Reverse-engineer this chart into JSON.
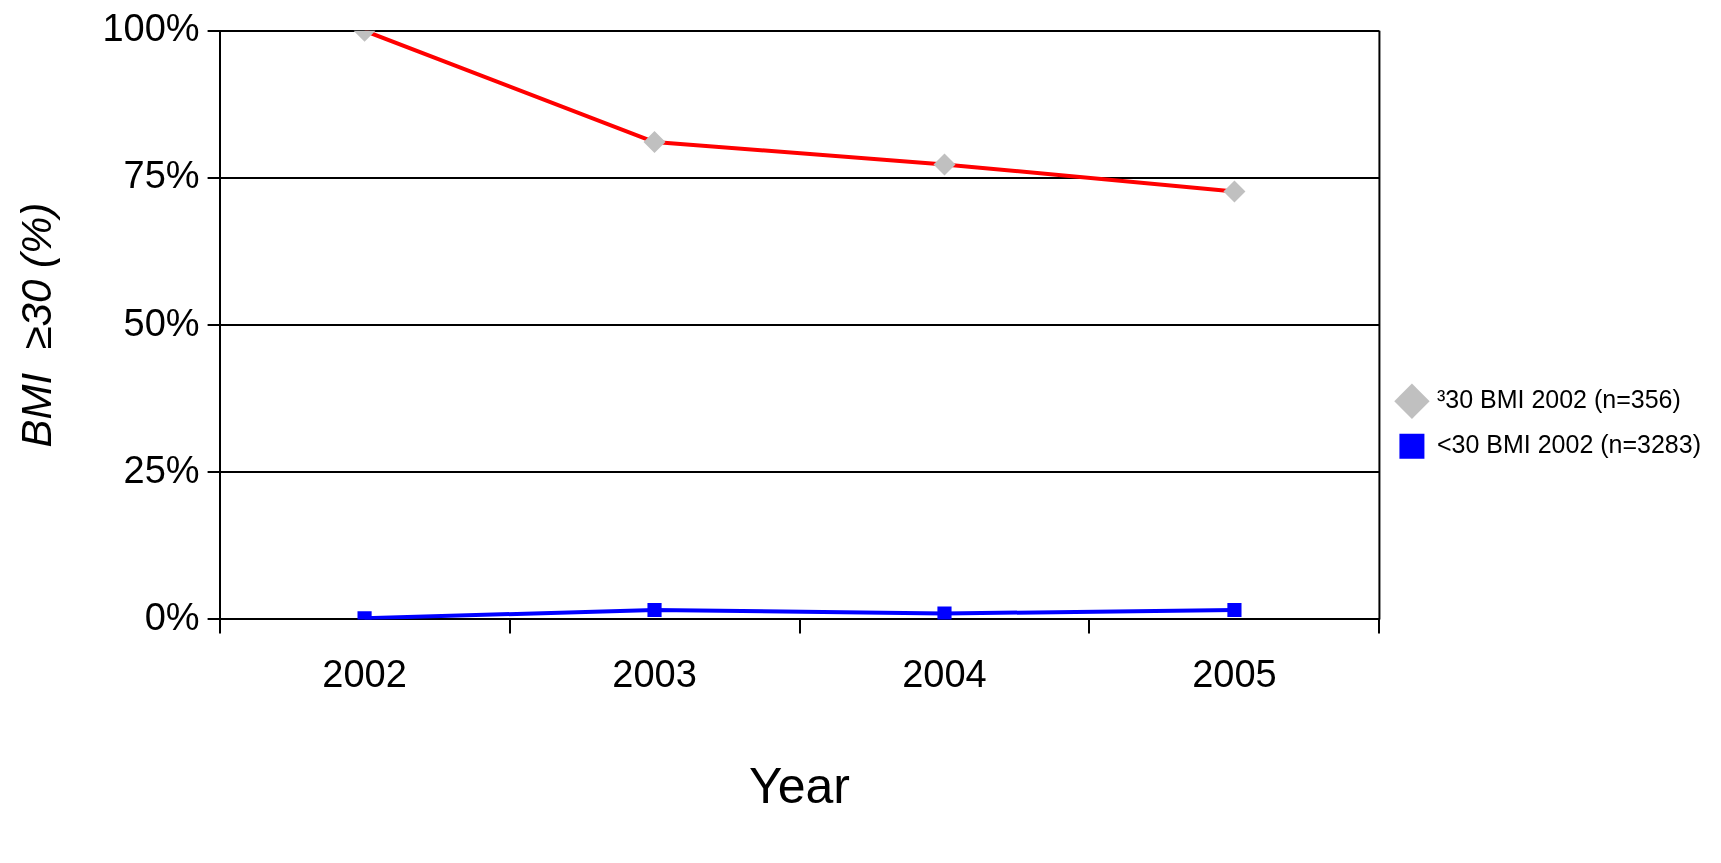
{
  "chart_data": {
    "type": "line",
    "xlabel": "Year",
    "ylabel": "BMI  ≥30 (%)",
    "categories": [
      "2002",
      "2003",
      "2004",
      "2005"
    ],
    "series": [
      {
        "name": "³30 BMI 2002 (n=356)",
        "color": "#ff0000",
        "marker": "diamond",
        "values": [
          100,
          81.1,
          77.3,
          72.7
        ]
      },
      {
        "name": "<30 BMI 2002 (n=3283)",
        "color": "#0000ff",
        "marker": "square",
        "values": [
          0.2,
          1.6,
          1.0,
          1.6
        ]
      }
    ],
    "ylim": [
      0,
      100
    ],
    "yticks": [
      {
        "value": 0,
        "label": "0%"
      },
      {
        "value": 25,
        "label": "25%"
      },
      {
        "value": 50,
        "label": "50%"
      },
      {
        "value": 75,
        "label": "75%"
      },
      {
        "value": 100,
        "label": "100%"
      }
    ],
    "grid": "y",
    "legend": "right",
    "line_style": "solid"
  }
}
